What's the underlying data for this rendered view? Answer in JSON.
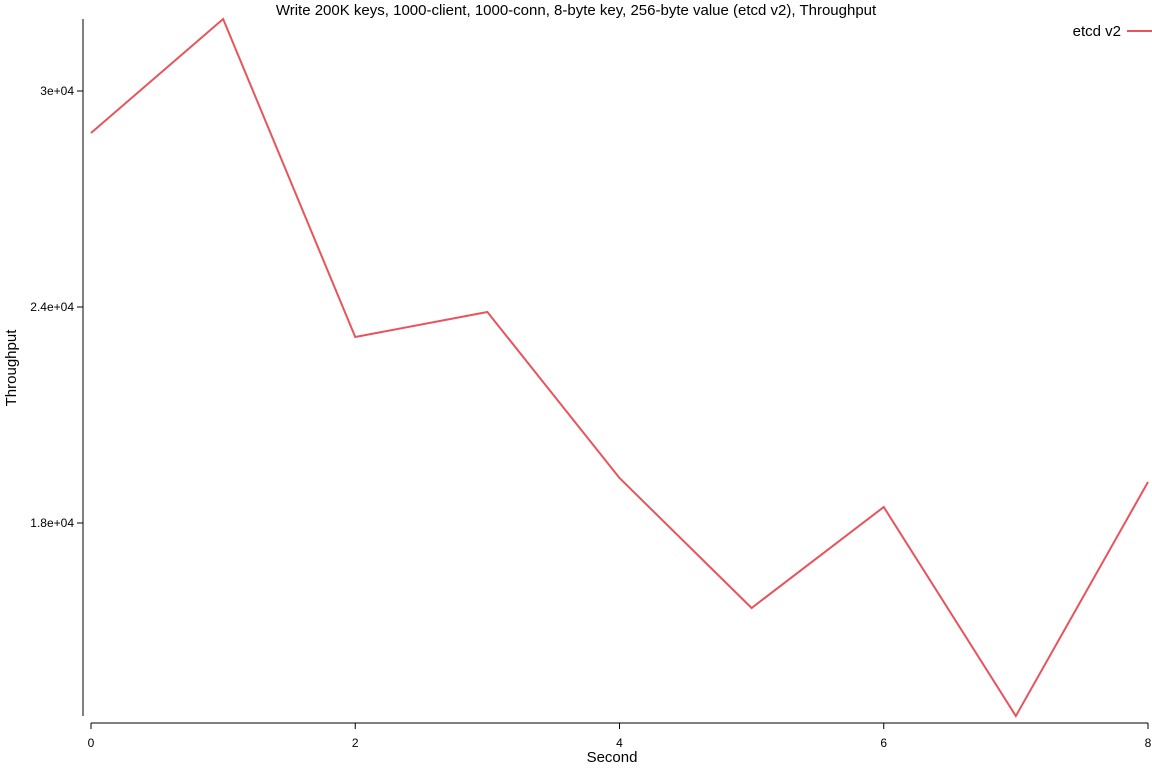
{
  "chart_data": {
    "type": "line",
    "title": "Write 200K keys, 1000-client, 1000-conn, 8-byte key, 256-byte value (etcd v2), Throughput",
    "x_label": "Second",
    "y_label": "Throughput",
    "x": [
      0,
      1,
      2,
      3,
      4,
      5,
      6,
      7,
      8
    ],
    "series": [
      {
        "name": "etcd v2",
        "color": "#e8545c",
        "values": [
          28833,
          32000,
          23167,
          23861,
          19250,
          15639,
          18444,
          12639,
          19139
        ]
      }
    ],
    "xlim": [
      0,
      8
    ],
    "xticks": [
      0,
      2,
      4,
      6,
      8
    ],
    "ylim": [
      12600,
      32000
    ],
    "yticks": [
      {
        "value": 18000,
        "label": "1.8e+04"
      },
      {
        "value": 24000,
        "label": "2.4e+04"
      },
      {
        "value": 30000,
        "label": "3e+04"
      }
    ],
    "legend": "top-right"
  }
}
